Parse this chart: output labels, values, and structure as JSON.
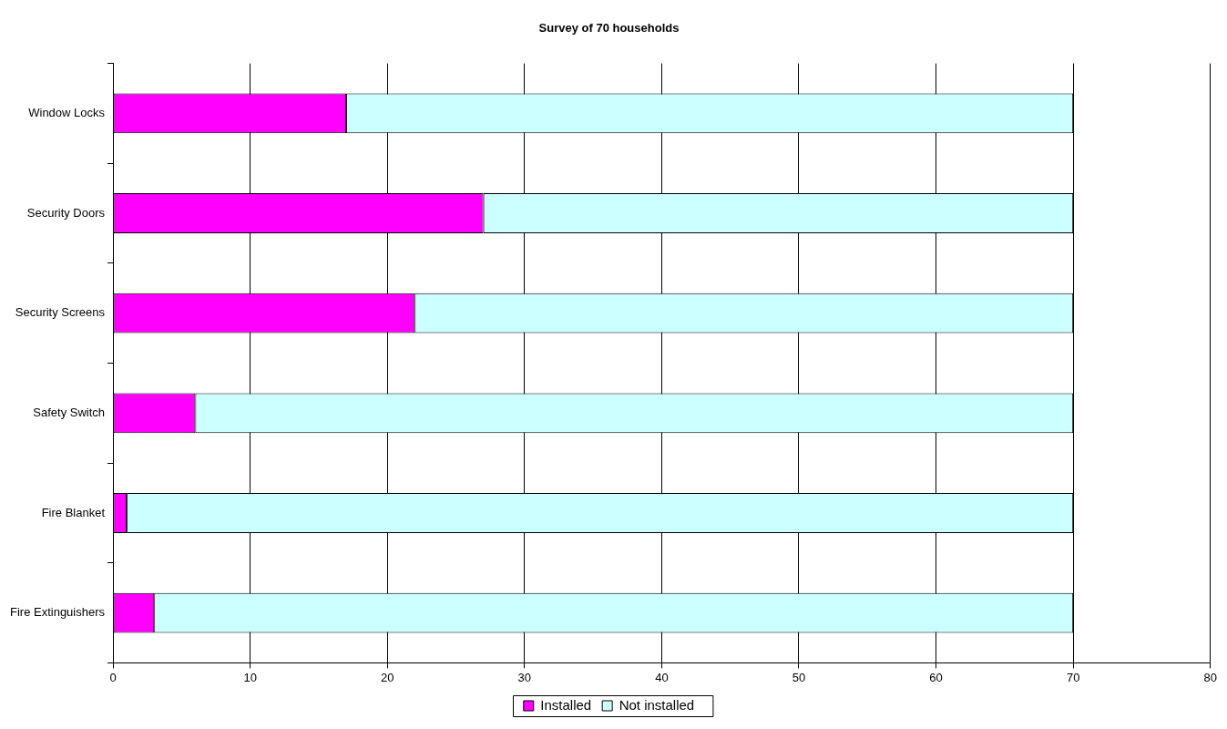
{
  "chart_data": {
    "type": "bar",
    "orientation": "horizontal",
    "stacked": true,
    "title": "Survey of 70 households",
    "categories": [
      "Window Locks",
      "Security Doors",
      "Security Screens",
      "Safety Switch",
      "Fire Blanket",
      "Fire Extinguishers"
    ],
    "series": [
      {
        "name": "Installed",
        "color": "#ff00ff",
        "values": [
          17,
          27,
          22,
          6,
          1,
          3
        ]
      },
      {
        "name": "Not installed",
        "color": "#ccffff",
        "values": [
          53,
          43,
          48,
          64,
          69,
          67
        ]
      }
    ],
    "xlim": [
      0,
      80
    ],
    "xticks": [
      0,
      10,
      20,
      30,
      40,
      50,
      60,
      70,
      80
    ],
    "grid": "x",
    "legend": "bottom"
  }
}
